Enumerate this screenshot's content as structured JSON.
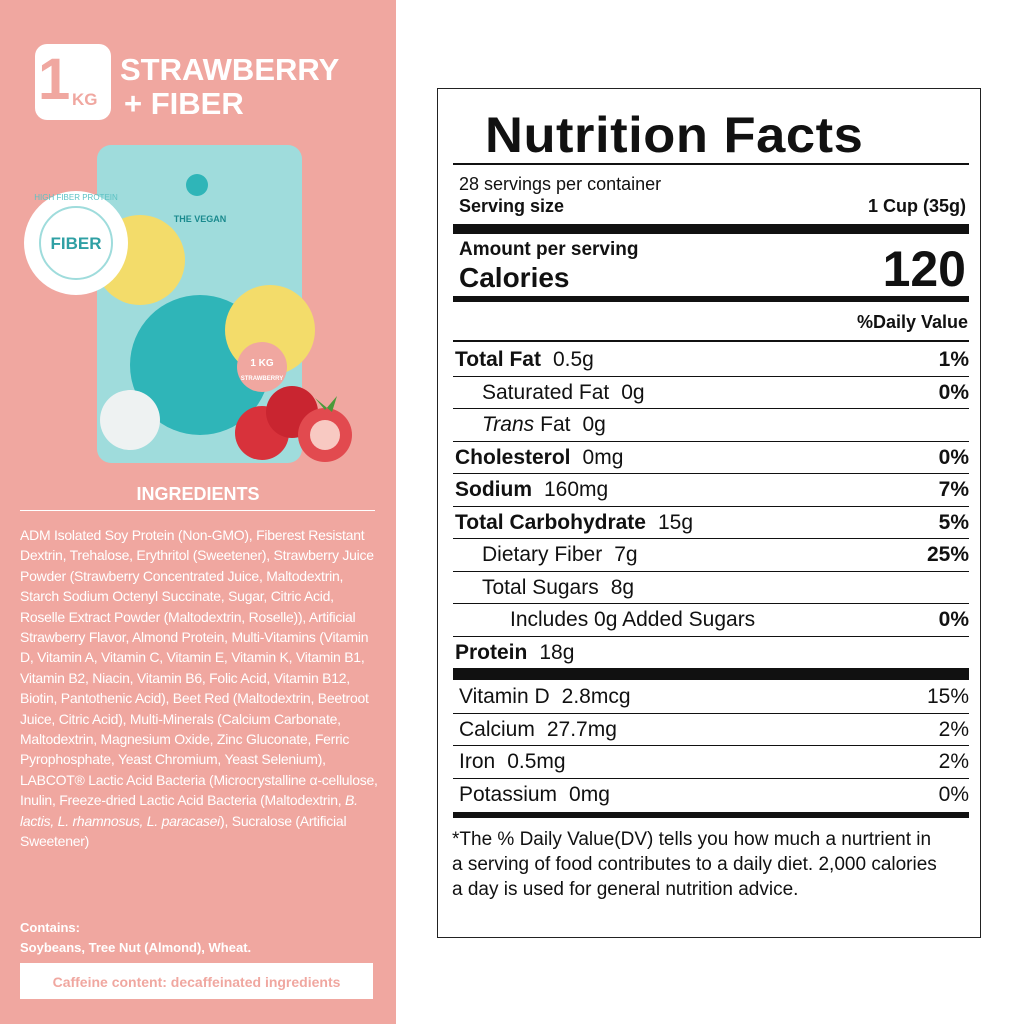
{
  "header": {
    "size_number": "1",
    "size_unit": "KG",
    "title_line1": "STRAWBERRY",
    "title_line2": "+ FIBER"
  },
  "product": {
    "badge": "FIBER",
    "badge_ring": "HIGH FIBER PROTEIN",
    "brand": "THE VEGAN",
    "pouch_size": "1 KG",
    "pouch_flavor": "STRAWBERRY"
  },
  "ingredients": {
    "title": "INGREDIENTS",
    "text": [
      "ADM Isolated Soy Protein (Non-GMO), Fiberest Resistant Dextrin, Trehalose, Erythritol (Sweetener), Strawberry Juice Powder (Strawberry Concentrated Juice, Maltodextrin, Starch Sodium Octenyl Succinate, Sugar, Citric Acid, Roselle Extract Powder (Maltodextrin, Roselle)), Artificial Strawberry Flavor, Almond Protein, Multi-Vitamins (Vitamin D, Vitamin A, Vitamin C, Vitamin E, Vitamin K, Vitamin B1, Vitamin B2, Niacin, Vitamin B6, Folic Acid, Vitamin B12, Biotin, Pantothenic Acid), Beet Red (Maltodextrin, Beetroot Juice, Citric Acid), Multi-Minerals (Calcium Carbonate, Maltodextrin, Magnesium Oxide, Zinc Gluconate, Ferric Pyrophosphate, Yeast Chromium, Yeast Selenium), LABCOT® Lactic Acid Bacteria (Microcrystalline α-cellulose, Inulin, Freeze-dried Lactic Acid Bacteria (Maltodextrin, ",
      "B. lactis, L. rhamnosus, L. paracasei",
      "), Sucralose (Artificial Sweetener)"
    ],
    "contains_label": "Contains:",
    "contains": "Soybeans, Tree Nut (Almond), Wheat.",
    "caffeine": "Caffeine content: decaffeinated ingredients"
  },
  "label": {
    "title": "Nutrition Facts",
    "servings": "28 servings per container",
    "serving_size_label": "Serving size",
    "serving_size": "1 Cup (35g)",
    "amount_per_serving": "Amount per serving",
    "calories_label": "Calories",
    "calories": "120",
    "dv_header": "%Daily Value",
    "rows": [
      {
        "name": "Total Fat",
        "amount": "0.5g",
        "dv": "1%",
        "bold": true,
        "indent": 0
      },
      {
        "name": "Saturated Fat",
        "amount": "0g",
        "dv": "0%",
        "bold": false,
        "indent": 1
      },
      {
        "name_italic": "Trans",
        "name": "Fat",
        "amount": "0g",
        "bold": false,
        "indent": 1
      },
      {
        "name": "Cholesterol",
        "amount": "0mg",
        "dv": "0%",
        "bold": true,
        "indent": 0
      },
      {
        "name": "Sodium",
        "amount": "160mg",
        "dv": "7%",
        "bold": true,
        "indent": 0
      },
      {
        "name": "Total Carbohydrate",
        "amount": "15g",
        "dv": "5%",
        "bold": true,
        "indent": 0
      },
      {
        "name": "Dietary Fiber",
        "amount": "7g",
        "dv": "25%",
        "bold": false,
        "indent": 1
      },
      {
        "name": "Total Sugars",
        "amount": "8g",
        "bold": false,
        "indent": 1
      },
      {
        "name": "Includes 0g Added Sugars",
        "dv": "0%",
        "bold": false,
        "indent": 2
      },
      {
        "name": "Protein",
        "amount": "18g",
        "bold": true,
        "indent": 0
      }
    ],
    "vitamins": [
      {
        "name": "Vitamin D",
        "amount": "2.8mcg",
        "dv": "15%"
      },
      {
        "name": "Calcium",
        "amount": "27.7mg",
        "dv": "2%"
      },
      {
        "name": "Iron",
        "amount": "0.5mg",
        "dv": "2%"
      },
      {
        "name": "Potassium",
        "amount": "0mg",
        "dv": "0%"
      }
    ],
    "footnote": "*The % Daily Value(DV) tells you how much a nurtrient in a serving of food contributes to a daily diet. 2,000 calories a day is used for general nutrition advice."
  }
}
